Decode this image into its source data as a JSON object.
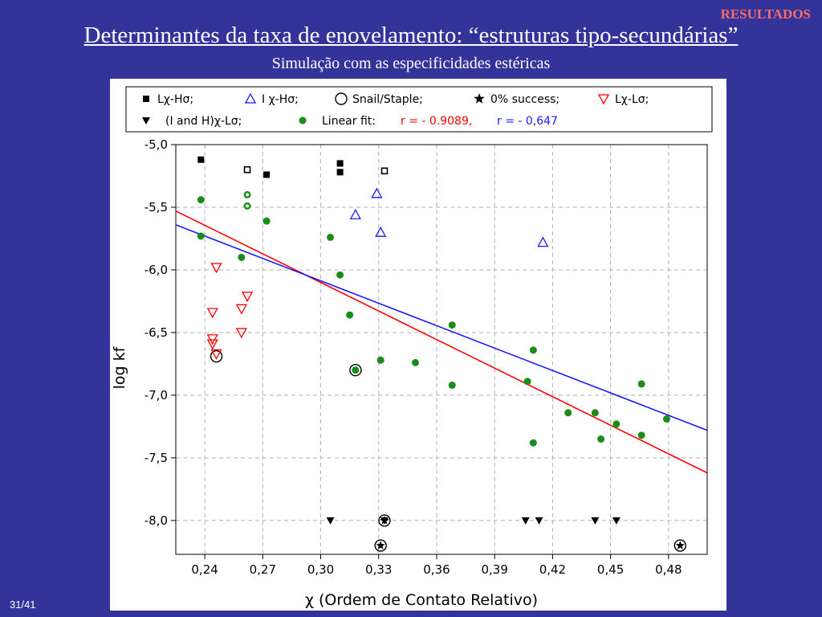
{
  "header": {
    "tag": "RESULTADOS",
    "title": "Determinantes da taxa de enovelamento: “estruturas tipo-secundárias”",
    "subtitle": "Simulação com as especificidades estéricas"
  },
  "footer": {
    "page": "31/41"
  },
  "chart_data": {
    "type": "scatter",
    "xlabel": "χ (Ordem de Contato Relativo)",
    "ylabel": "log kf",
    "xlim": [
      0.225,
      0.5
    ],
    "ylim": [
      -8.27,
      -5.0
    ],
    "x_ticks": [
      0.24,
      0.27,
      0.3,
      0.33,
      0.36,
      0.39,
      0.42,
      0.45,
      0.48
    ],
    "x_tick_labels": [
      "0,24",
      "0,27",
      "0,30",
      "0,33",
      "0,36",
      "0,39",
      "0,42",
      "0,45",
      "0,48"
    ],
    "y_ticks": [
      -5.0,
      -5.5,
      -6.0,
      -6.5,
      -7.0,
      -7.5,
      -8.0
    ],
    "y_tick_labels": [
      "-5,0",
      "-5,5",
      "-6,0",
      "-6,5",
      "-7,0",
      "-7,5",
      "-8,0"
    ],
    "grid": true,
    "legend_position": "top",
    "legend": {
      "row1": [
        {
          "marker": "square-filled",
          "color": "#000000",
          "label": "Lχ-Hσ;"
        },
        {
          "marker": "triangle-up-open",
          "color": "#1a1aff",
          "label": "I χ-Hσ;"
        },
        {
          "marker": "circle-open",
          "color": "#000000",
          "label": "Snail/Staple;"
        },
        {
          "marker": "star",
          "color": "#000000",
          "label": "0% success;"
        },
        {
          "marker": "triangle-down-open",
          "color": "#ff0000",
          "label": "Lχ-Lσ;"
        }
      ],
      "row2": [
        {
          "marker": "triangle-down-filled",
          "color": "#000000",
          "label": "(I and H)χ-Lσ;"
        },
        {
          "marker": "circle-filled",
          "color": "#1a8c1a",
          "label": "Linear fit:"
        }
      ],
      "fit_red_text": "r = - 0.9089,",
      "fit_blue_text": "r = - 0,647"
    },
    "series": [
      {
        "marker": "square-filled",
        "color": "#000000",
        "points": [
          [
            0.238,
            -5.12
          ],
          [
            0.272,
            -5.24
          ],
          [
            0.31,
            -5.15
          ],
          [
            0.31,
            -5.22
          ]
        ]
      },
      {
        "marker": "square-small-open",
        "color": "#000000",
        "points": [
          [
            0.262,
            -5.2
          ],
          [
            0.333,
            -5.21
          ]
        ]
      },
      {
        "marker": "triangle-up-open",
        "color": "#1a1aff",
        "points": [
          [
            0.318,
            -5.56
          ],
          [
            0.329,
            -5.39
          ],
          [
            0.331,
            -5.7
          ],
          [
            0.415,
            -5.78
          ]
        ]
      },
      {
        "marker": "circle-open",
        "color": "#000000",
        "points": [
          [
            0.246,
            -6.69
          ],
          [
            0.318,
            -6.8
          ]
        ]
      },
      {
        "marker": "triangle-down-open",
        "color": "#ff0000",
        "points": [
          [
            0.244,
            -6.34
          ],
          [
            0.244,
            -6.55
          ],
          [
            0.244,
            -6.59
          ],
          [
            0.246,
            -5.98
          ],
          [
            0.259,
            -6.31
          ],
          [
            0.259,
            -6.5
          ],
          [
            0.262,
            -6.21
          ],
          [
            0.246,
            -6.67
          ]
        ]
      },
      {
        "marker": "circle-filled",
        "color": "#1a8c1a",
        "points": [
          [
            0.238,
            -5.44
          ],
          [
            0.238,
            -5.73
          ],
          [
            0.262,
            -5.4
          ],
          [
            0.262,
            -5.49
          ],
          [
            0.259,
            -5.9
          ],
          [
            0.272,
            -5.61
          ],
          [
            0.305,
            -5.74
          ],
          [
            0.31,
            -6.04
          ],
          [
            0.315,
            -6.36
          ],
          [
            0.318,
            -6.8
          ],
          [
            0.331,
            -6.72
          ],
          [
            0.349,
            -6.74
          ],
          [
            0.368,
            -6.44
          ],
          [
            0.368,
            -6.92
          ],
          [
            0.407,
            -6.89
          ],
          [
            0.41,
            -6.64
          ],
          [
            0.41,
            -7.38
          ],
          [
            0.428,
            -7.14
          ],
          [
            0.442,
            -7.14
          ],
          [
            0.445,
            -7.35
          ],
          [
            0.453,
            -7.23
          ],
          [
            0.466,
            -6.91
          ],
          [
            0.466,
            -7.32
          ],
          [
            0.479,
            -7.19
          ]
        ]
      },
      {
        "marker": "circle-small-open-green",
        "color": "#1a8c1a",
        "points": [
          [
            0.262,
            -5.4
          ],
          [
            0.262,
            -5.49
          ]
        ]
      },
      {
        "marker": "triangle-down-filled",
        "color": "#000000",
        "points": [
          [
            0.305,
            -8.0
          ],
          [
            0.333,
            -8.0
          ],
          [
            0.406,
            -8.0
          ],
          [
            0.413,
            -8.0
          ],
          [
            0.442,
            -8.0
          ],
          [
            0.453,
            -8.0
          ]
        ]
      },
      {
        "marker": "star-circle",
        "color": "#000000",
        "points": [
          [
            0.333,
            -8.0
          ],
          [
            0.331,
            -8.2
          ],
          [
            0.486,
            -8.2
          ]
        ]
      }
    ],
    "fits": [
      {
        "color": "#ff0000",
        "x": [
          0.225,
          0.5
        ],
        "y": [
          -5.53,
          -7.62
        ]
      },
      {
        "color": "#1a1aff",
        "x": [
          0.225,
          0.5
        ],
        "y": [
          -5.64,
          -7.28
        ]
      }
    ]
  }
}
